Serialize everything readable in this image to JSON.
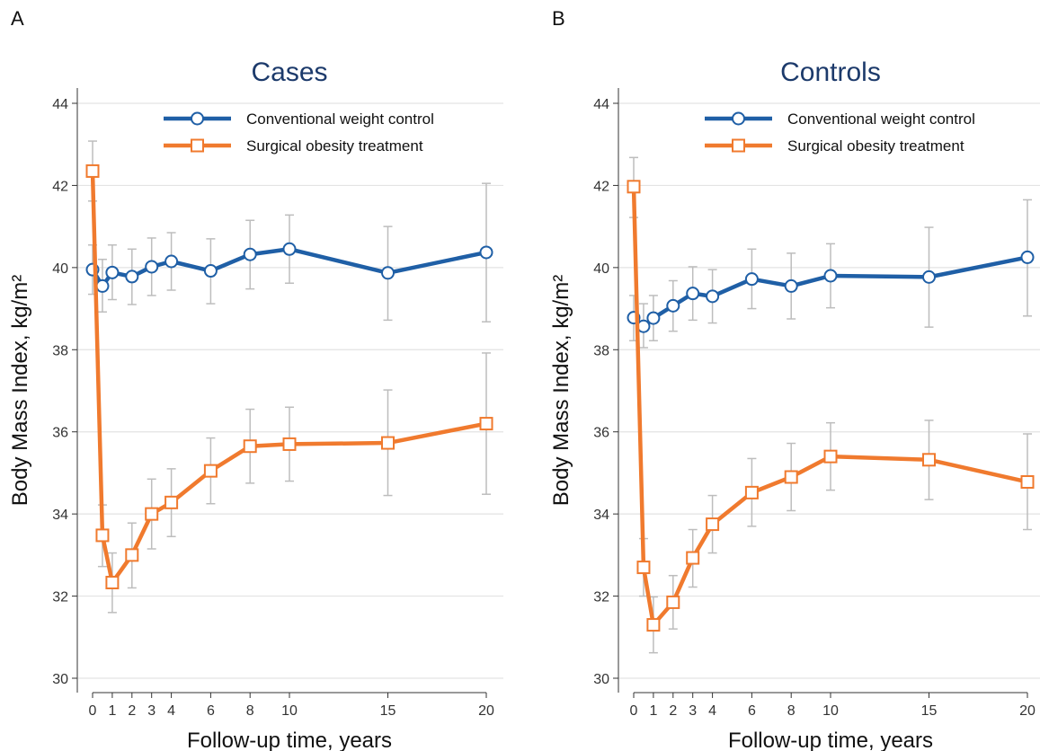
{
  "chart_data": [
    {
      "panel": "A",
      "type": "line",
      "title": "Cases",
      "xlabel": "Follow-up time, years",
      "ylabel": "Body Mass Index, kg/m²",
      "ylim": [
        30,
        44
      ],
      "xlim": [
        0,
        20
      ],
      "xticks": [
        0,
        1,
        2,
        3,
        4,
        6,
        8,
        10,
        15,
        20
      ],
      "yticks": [
        30,
        32,
        34,
        36,
        38,
        40,
        42,
        44
      ],
      "grid": true,
      "legend_position": "top-right",
      "series": [
        {
          "name": "Conventional weight control",
          "color": "#1f5fa6",
          "marker": "circle",
          "x": [
            0,
            0.5,
            1,
            2,
            3,
            4,
            6,
            8,
            10,
            15,
            20
          ],
          "y": [
            39.95,
            39.55,
            39.88,
            39.78,
            40.02,
            40.15,
            39.92,
            40.32,
            40.45,
            39.87,
            40.37
          ],
          "ci_low": [
            39.35,
            38.92,
            39.22,
            39.1,
            39.32,
            39.45,
            39.12,
            39.48,
            39.62,
            38.72,
            38.68
          ],
          "ci_high": [
            40.55,
            40.2,
            40.55,
            40.45,
            40.72,
            40.85,
            40.7,
            41.15,
            41.28,
            41.0,
            42.05
          ]
        },
        {
          "name": "Surgical obesity treatment",
          "color": "#f07a2e",
          "marker": "square",
          "x": [
            0,
            0.5,
            1,
            2,
            3,
            4,
            6,
            8,
            10,
            15,
            20
          ],
          "y": [
            42.35,
            33.48,
            32.33,
            33.0,
            34.0,
            34.28,
            35.05,
            35.65,
            35.7,
            35.73,
            36.2
          ],
          "ci_low": [
            41.62,
            32.72,
            31.6,
            32.2,
            33.15,
            33.45,
            34.25,
            34.75,
            34.8,
            34.45,
            34.48
          ],
          "ci_high": [
            43.08,
            34.22,
            33.05,
            33.78,
            34.85,
            35.1,
            35.85,
            36.55,
            36.6,
            37.02,
            37.92
          ]
        }
      ]
    },
    {
      "panel": "B",
      "type": "line",
      "title": "Controls",
      "xlabel": "Follow-up time, years",
      "ylabel": "Body Mass Index, kg/m²",
      "ylim": [
        30,
        44
      ],
      "xlim": [
        0,
        20
      ],
      "xticks": [
        0,
        1,
        2,
        3,
        4,
        6,
        8,
        10,
        15,
        20
      ],
      "yticks": [
        30,
        32,
        34,
        36,
        38,
        40,
        42,
        44
      ],
      "grid": true,
      "legend_position": "top-right",
      "series": [
        {
          "name": "Conventional weight control",
          "color": "#1f5fa6",
          "marker": "circle",
          "x": [
            0,
            0.5,
            1,
            2,
            3,
            4,
            6,
            8,
            10,
            15,
            20
          ],
          "y": [
            38.78,
            38.57,
            38.77,
            39.07,
            39.37,
            39.3,
            39.72,
            39.55,
            39.8,
            39.77,
            40.25
          ],
          "ci_low": [
            38.22,
            38.05,
            38.22,
            38.45,
            38.72,
            38.65,
            39.0,
            38.75,
            39.02,
            38.55,
            38.82
          ],
          "ci_high": [
            39.32,
            39.12,
            39.32,
            39.68,
            40.02,
            39.95,
            40.45,
            40.35,
            40.58,
            40.98,
            41.65
          ]
        },
        {
          "name": "Surgical obesity treatment",
          "color": "#f07a2e",
          "marker": "square",
          "x": [
            0,
            0.5,
            1,
            2,
            3,
            4,
            6,
            8,
            10,
            15,
            20
          ],
          "y": [
            41.97,
            32.7,
            31.3,
            31.85,
            32.93,
            33.75,
            34.52,
            34.9,
            35.4,
            35.32,
            34.78
          ],
          "ci_low": [
            41.22,
            32.0,
            30.62,
            31.2,
            32.22,
            33.05,
            33.7,
            34.08,
            34.58,
            34.35,
            33.62
          ],
          "ci_high": [
            42.68,
            33.4,
            31.98,
            32.5,
            33.62,
            34.45,
            35.35,
            35.72,
            36.22,
            36.28,
            35.95
          ]
        }
      ]
    }
  ]
}
